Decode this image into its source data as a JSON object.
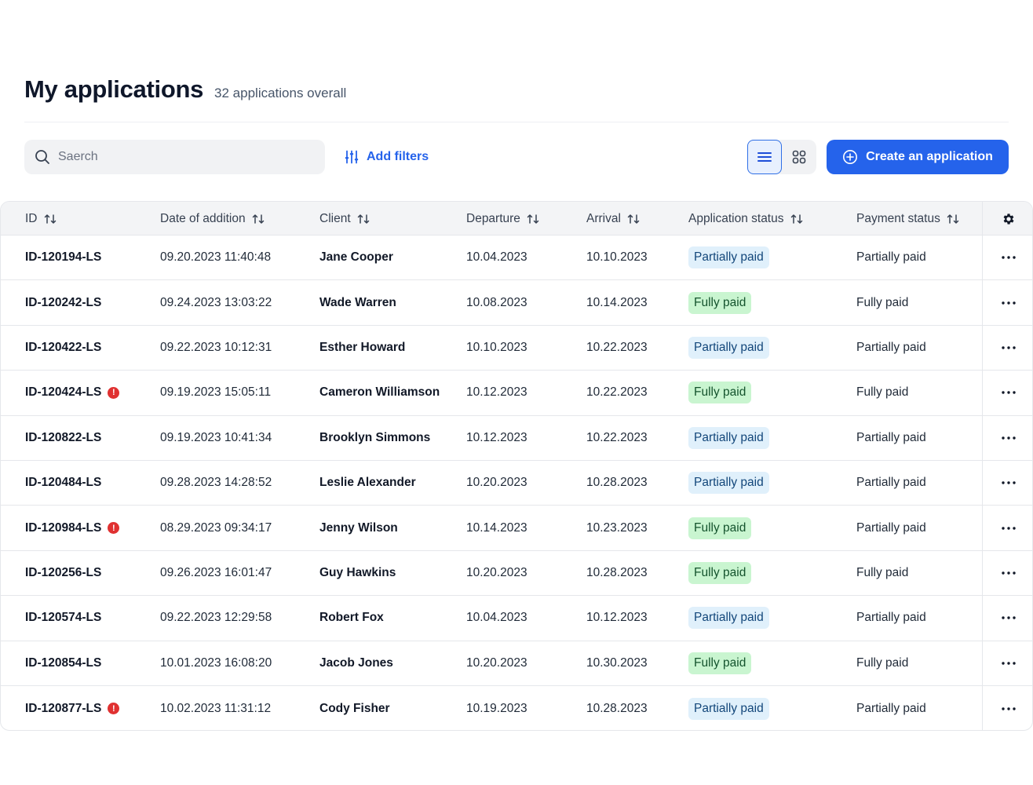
{
  "header": {
    "title": "My applications",
    "subtitle": "32 applications overall"
  },
  "toolbar": {
    "search_placeholder": "Saerch",
    "filters_label": "Add filters",
    "create_label": "Create an application",
    "view_modes": [
      "list",
      "grid"
    ],
    "active_view": "list"
  },
  "colors": {
    "accent": "#2563eb",
    "partial_bg": "#e0f0fb",
    "full_bg": "#c9f5d0",
    "alert": "#e03131"
  },
  "table": {
    "columns": [
      "ID",
      "Date of addition",
      "Client",
      "Departure",
      "Arrival",
      "Application status",
      "Payment status"
    ],
    "rows": [
      {
        "id": "ID-120194-LS",
        "alert": false,
        "date": "09.20.2023 11:40:48",
        "client": "Jane Cooper",
        "departure": "10.04.2023",
        "arrival": "10.10.2023",
        "app_status": "Partially paid",
        "payment": "Partially paid"
      },
      {
        "id": "ID-120242-LS",
        "alert": false,
        "date": "09.24.2023 13:03:22",
        "client": "Wade Warren",
        "departure": "10.08.2023",
        "arrival": "10.14.2023",
        "app_status": "Fully paid",
        "payment": "Fully paid"
      },
      {
        "id": "ID-120422-LS",
        "alert": false,
        "date": "09.22.2023 10:12:31",
        "client": "Esther Howard",
        "departure": "10.10.2023",
        "arrival": "10.22.2023",
        "app_status": "Partially paid",
        "payment": "Partially paid"
      },
      {
        "id": "ID-120424-LS",
        "alert": true,
        "date": "09.19.2023 15:05:11",
        "client": "Cameron Williamson",
        "departure": "10.12.2023",
        "arrival": "10.22.2023",
        "app_status": "Fully paid",
        "payment": "Fully paid"
      },
      {
        "id": "ID-120822-LS",
        "alert": false,
        "date": "09.19.2023 10:41:34",
        "client": "Brooklyn Simmons",
        "departure": "10.12.2023",
        "arrival": "10.22.2023",
        "app_status": "Partially paid",
        "payment": "Partially paid"
      },
      {
        "id": "ID-120484-LS",
        "alert": false,
        "date": "09.28.2023 14:28:52",
        "client": "Leslie Alexander",
        "departure": "10.20.2023",
        "arrival": "10.28.2023",
        "app_status": "Partially paid",
        "payment": "Partially paid"
      },
      {
        "id": "ID-120984-LS",
        "alert": true,
        "date": "08.29.2023 09:34:17",
        "client": "Jenny Wilson",
        "departure": "10.14.2023",
        "arrival": "10.23.2023",
        "app_status": "Fully paid",
        "payment": "Partially paid"
      },
      {
        "id": "ID-120256-LS",
        "alert": false,
        "date": "09.26.2023 16:01:47",
        "client": "Guy Hawkins",
        "departure": "10.20.2023",
        "arrival": "10.28.2023",
        "app_status": "Fully paid",
        "payment": "Fully paid"
      },
      {
        "id": "ID-120574-LS",
        "alert": false,
        "date": "09.22.2023 12:29:58",
        "client": "Robert Fox",
        "departure": "10.04.2023",
        "arrival": "10.12.2023",
        "app_status": "Partially paid",
        "payment": "Partially paid"
      },
      {
        "id": "ID-120854-LS",
        "alert": false,
        "date": "10.01.2023 16:08:20",
        "client": "Jacob Jones",
        "departure": "10.20.2023",
        "arrival": "10.30.2023",
        "app_status": "Fully paid",
        "payment": "Fully paid"
      },
      {
        "id": "ID-120877-LS",
        "alert": true,
        "date": "10.02.2023 11:31:12",
        "client": "Cody Fisher",
        "departure": "10.19.2023",
        "arrival": "10.28.2023",
        "app_status": "Partially paid",
        "payment": "Partially paid"
      }
    ]
  }
}
